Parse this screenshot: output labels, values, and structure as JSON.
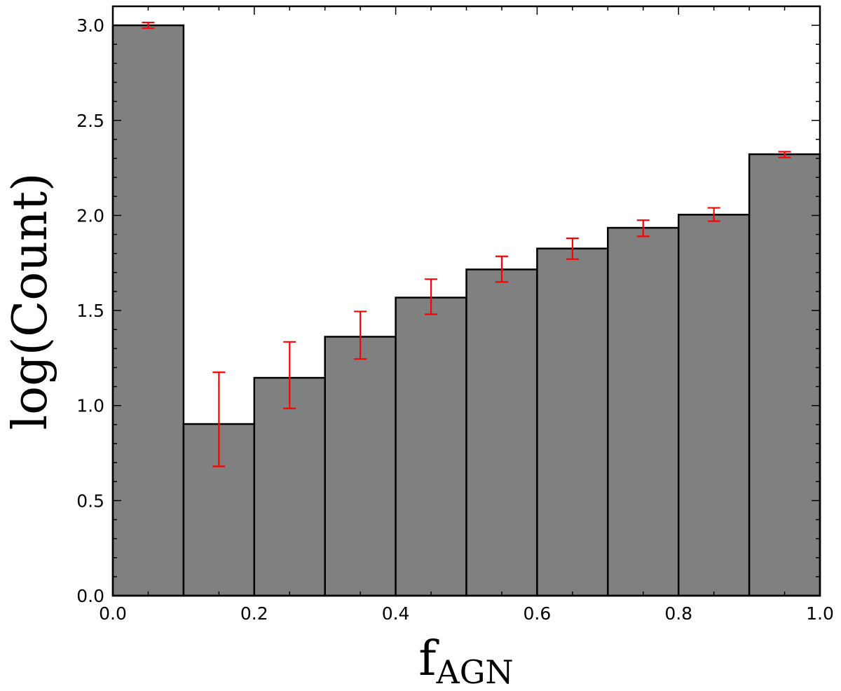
{
  "chart_data": {
    "type": "bar",
    "title": "",
    "xlabel": "f",
    "xlabel_subscript": "AGN",
    "ylabel": "log(Count)",
    "xlim": [
      0.0,
      1.0
    ],
    "ylim": [
      0.0,
      3.1
    ],
    "bin_edges": [
      0.0,
      0.1,
      0.2,
      0.3,
      0.4,
      0.5,
      0.6,
      0.7,
      0.8,
      0.9,
      1.0
    ],
    "values": [
      3.0,
      0.903,
      1.146,
      1.362,
      1.568,
      1.716,
      1.826,
      1.935,
      2.004,
      2.322
    ],
    "error_low": [
      2.985,
      0.68,
      0.985,
      1.245,
      1.48,
      1.65,
      1.77,
      1.89,
      1.97,
      2.305
    ],
    "error_high": [
      3.015,
      1.175,
      1.335,
      1.495,
      1.665,
      1.785,
      1.88,
      1.975,
      2.04,
      2.335
    ],
    "x_ticks": [
      "0.0",
      "0.2",
      "0.4",
      "0.6",
      "0.8",
      "1.0"
    ],
    "y_ticks": [
      "0.0",
      "0.5",
      "1.0",
      "1.5",
      "2.0",
      "2.5",
      "3.0"
    ],
    "grid": false,
    "colors": {
      "bar_fill": "#808080",
      "bar_edge": "#000000",
      "error_bar": "#ff0000"
    }
  }
}
